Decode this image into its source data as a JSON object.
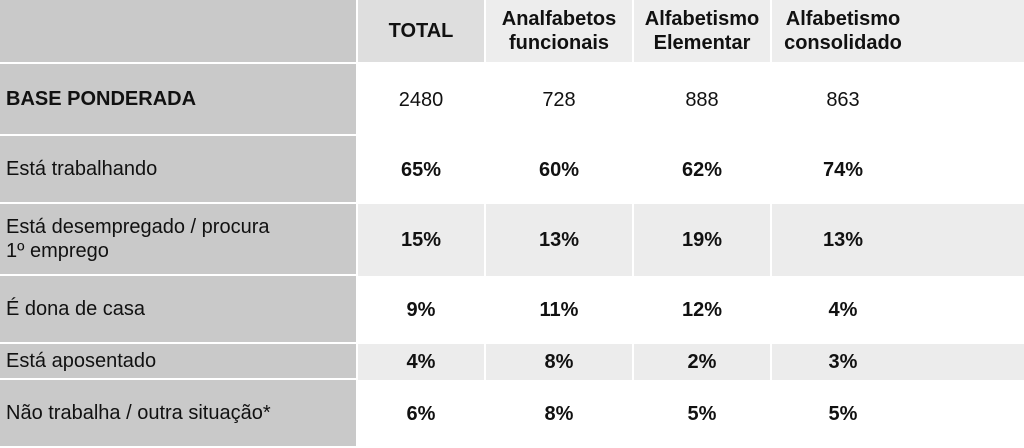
{
  "columns": [
    "TOTAL",
    "Analfabetos funcionais",
    "Alfabetismo Elementar",
    "Alfabetismo consolidado"
  ],
  "column_lines": [
    [
      "TOTAL"
    ],
    [
      "Analfabetos",
      "funcionais"
    ],
    [
      "Alfabetismo",
      "Elementar"
    ],
    [
      "Alfabetismo",
      "consolidado"
    ]
  ],
  "rows": [
    {
      "label_lines": [
        "BASE PONDERADA"
      ],
      "values": [
        "2480",
        "728",
        "888",
        "863"
      ]
    },
    {
      "label_lines": [
        "Está trabalhando"
      ],
      "values": [
        "65%",
        "60%",
        "62%",
        "74%"
      ]
    },
    {
      "label_lines": [
        "Está desempregado / procura",
        "1º emprego"
      ],
      "values": [
        "15%",
        "13%",
        "19%",
        "13%"
      ]
    },
    {
      "label_lines": [
        "É dona de casa"
      ],
      "values": [
        "9%",
        "11%",
        "12%",
        "4%"
      ]
    },
    {
      "label_lines": [
        "Está aposentado"
      ],
      "values": [
        "4%",
        "8%",
        "2%",
        "3%"
      ]
    },
    {
      "label_lines": [
        "Não trabalha / outra situação*"
      ],
      "values": [
        "6%",
        "8%",
        "5%",
        "5%"
      ]
    }
  ],
  "colors": {
    "label_bg": "#c9c9c9",
    "header_bg": "#ededed",
    "alt_row_bg": "#ececec",
    "text": "#111111"
  }
}
